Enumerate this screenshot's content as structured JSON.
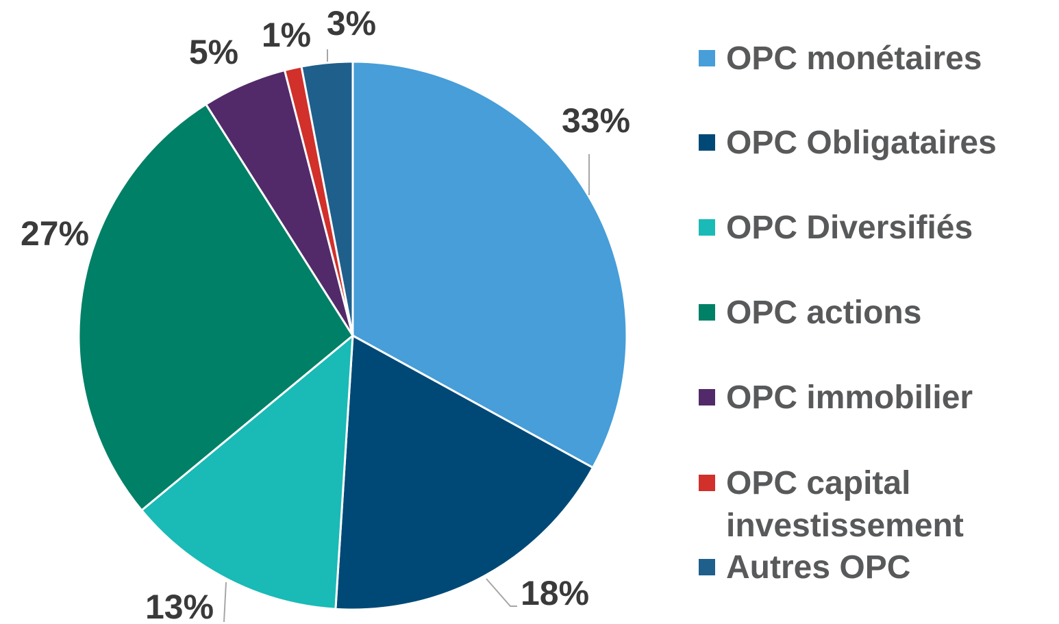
{
  "chart_data": {
    "type": "pie",
    "categories": [
      "OPC monétaires",
      "OPC Obligataires",
      "OPC Diversifiés",
      "OPC actions",
      "OPC immobilier",
      "OPC capital investissement",
      "Autres OPC"
    ],
    "values": [
      33,
      18,
      13,
      27,
      5,
      1,
      3
    ],
    "value_labels": [
      "33%",
      "18%",
      "13%",
      "27%",
      "5%",
      "1%",
      "3%"
    ],
    "colors": [
      "#479ed8",
      "#004976",
      "#1abab6",
      "#008066",
      "#522a69",
      "#d1302b",
      "#1f5f8c"
    ],
    "legend": "right"
  }
}
